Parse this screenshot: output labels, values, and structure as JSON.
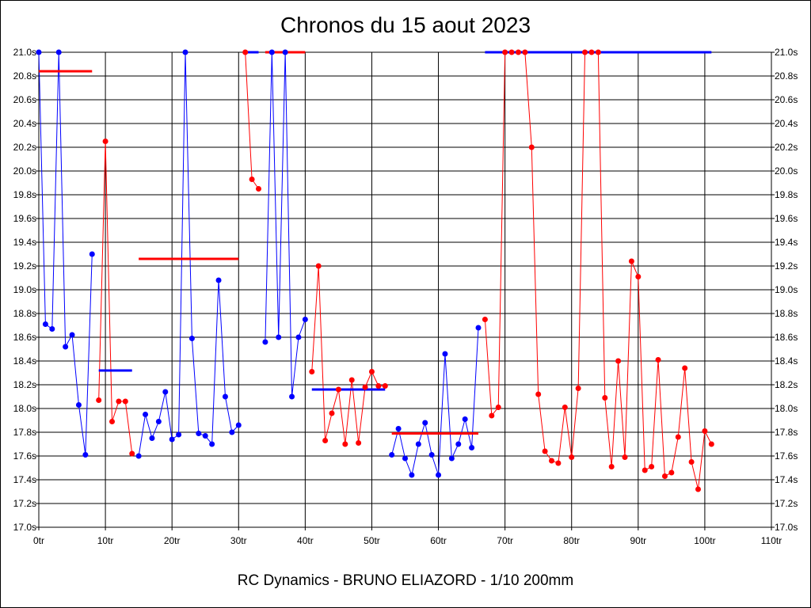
{
  "chart_data": {
    "type": "line",
    "title": "Chronos du 15 aout 2023",
    "footer": "RC Dynamics - BRUNO ELIAZORD - 1/10 200mm",
    "xlabel": "",
    "ylabel": "",
    "xlim": [
      0,
      110
    ],
    "ylim": [
      17.0,
      21.0
    ],
    "x_ticks": [
      "0tr",
      "10tr",
      "20tr",
      "30tr",
      "40tr",
      "50tr",
      "60tr",
      "70tr",
      "80tr",
      "90tr",
      "100tr",
      "110tr"
    ],
    "y_ticks": [
      "17.0s",
      "17.2s",
      "17.4s",
      "17.6s",
      "17.8s",
      "18.0s",
      "18.2s",
      "18.4s",
      "18.6s",
      "18.8s",
      "19.0s",
      "19.2s",
      "19.4s",
      "19.6s",
      "19.8s",
      "20.0s",
      "20.2s",
      "20.4s",
      "20.6s",
      "20.8s",
      "21.0s"
    ],
    "grid": true,
    "colors": {
      "blue": "#0000ff",
      "red": "#ff0000"
    },
    "series": [
      {
        "name": "segment-1",
        "color": "blue",
        "start_lap": 0,
        "values": [
          21.0,
          18.71,
          18.67,
          21.0,
          18.52,
          18.62,
          18.03,
          17.61,
          19.3
        ],
        "average": 20.84,
        "average_color": "red"
      },
      {
        "name": "segment-2",
        "color": "red",
        "start_lap": 9,
        "values": [
          18.07,
          20.25,
          17.89,
          18.06,
          18.06,
          17.62
        ],
        "average": 18.32,
        "average_color": "blue"
      },
      {
        "name": "segment-3",
        "color": "blue",
        "start_lap": 15,
        "values": [
          17.6,
          17.95,
          17.75,
          17.89,
          18.14,
          17.74,
          17.78,
          21.0,
          18.59,
          17.79,
          17.77,
          17.7,
          19.08,
          18.1,
          17.8,
          17.86
        ],
        "average": 19.26,
        "average_color": "red"
      },
      {
        "name": "segment-4",
        "color": "red",
        "start_lap": 31,
        "values": [
          21.0,
          19.93,
          19.85
        ],
        "average": 21.0,
        "average_color": "blue"
      },
      {
        "name": "segment-5",
        "color": "blue",
        "start_lap": 34,
        "values": [
          18.56,
          21.0,
          18.6,
          21.0,
          18.1,
          18.6,
          18.75
        ],
        "average": 21.0,
        "average_color": "red"
      },
      {
        "name": "segment-6",
        "color": "red",
        "start_lap": 41,
        "values": [
          18.31,
          19.2,
          17.73,
          17.96,
          18.16,
          17.7,
          18.24,
          17.71,
          18.18,
          18.31,
          18.19,
          18.19
        ],
        "average": 18.16,
        "average_color": "blue"
      },
      {
        "name": "segment-7",
        "color": "blue",
        "start_lap": 53,
        "values": [
          17.61,
          17.83,
          17.58,
          17.44,
          17.7,
          17.88,
          17.61,
          17.44,
          18.46,
          17.58,
          17.7,
          17.91,
          17.67,
          18.68
        ],
        "average": 17.79,
        "average_color": "red"
      },
      {
        "name": "segment-8",
        "color": "red",
        "start_lap": 67,
        "values": [
          18.75,
          17.94,
          18.01,
          21.0,
          21.0,
          21.0,
          21.0,
          20.2,
          18.12,
          17.64,
          17.56,
          17.54,
          18.01,
          17.59,
          18.17,
          21.0,
          21.0,
          21.0,
          18.09,
          17.51,
          18.4,
          17.59,
          19.24,
          19.11,
          17.48,
          17.51,
          18.41,
          17.43,
          17.46,
          17.76,
          18.34,
          17.55,
          17.32,
          17.81,
          17.7
        ],
        "average": 21.0,
        "average_color": "blue"
      }
    ]
  }
}
